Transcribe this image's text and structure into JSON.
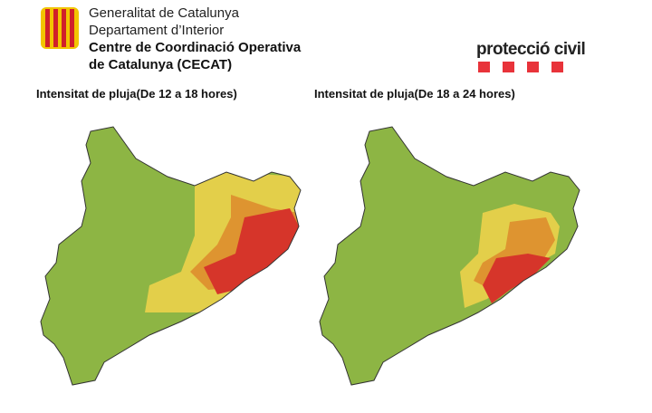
{
  "header": {
    "line1": "Generalitat de Catalunya",
    "line2": "Departament d’Interior",
    "line3": "Centre de Coordinació Operativa",
    "line4": "de Catalunya (CECAT)"
  },
  "logo": {
    "text": "protecció civil"
  },
  "maps": [
    {
      "title": "Intensitat de pluja(De 12 a 18 hores)"
    },
    {
      "title": "Intensitat de pluja(De 18 a 24 hores)"
    }
  ]
}
